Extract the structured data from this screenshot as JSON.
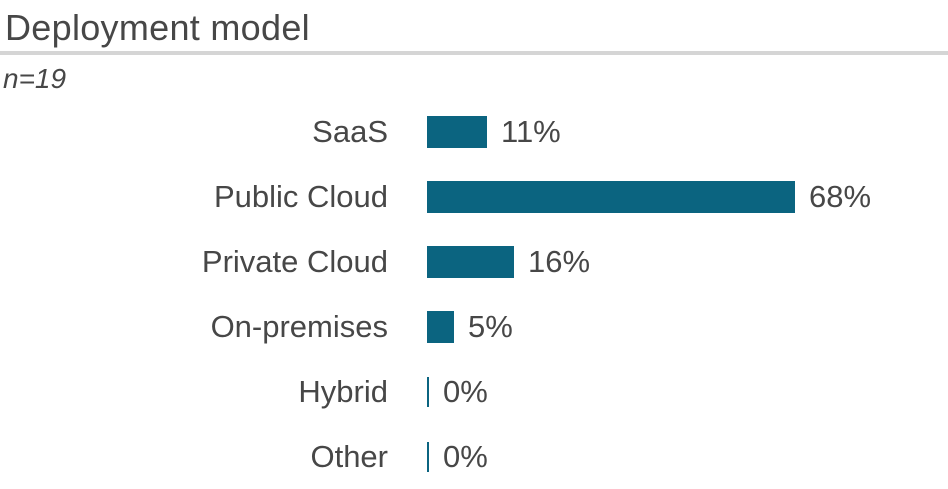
{
  "header": {
    "title": "Deployment model",
    "sample_size": "n=19"
  },
  "chart_data": {
    "type": "bar",
    "orientation": "horizontal",
    "title": "Deployment model",
    "subtitle": "n=19",
    "categories": [
      "SaaS",
      "Public Cloud",
      "Private Cloud",
      "On-premises",
      "Hybrid",
      "Other"
    ],
    "values": [
      11,
      68,
      16,
      5,
      0,
      0
    ],
    "value_labels": [
      "11%",
      "68%",
      "16%",
      "5%",
      "0%",
      "0%"
    ],
    "unit": "%",
    "xlim": [
      0,
      100
    ],
    "grid": false,
    "legend": false,
    "bar_color": "#0b6480",
    "text_color": "#474747",
    "divider_color": "#d5d5d5",
    "background_color": "#ffffff"
  }
}
